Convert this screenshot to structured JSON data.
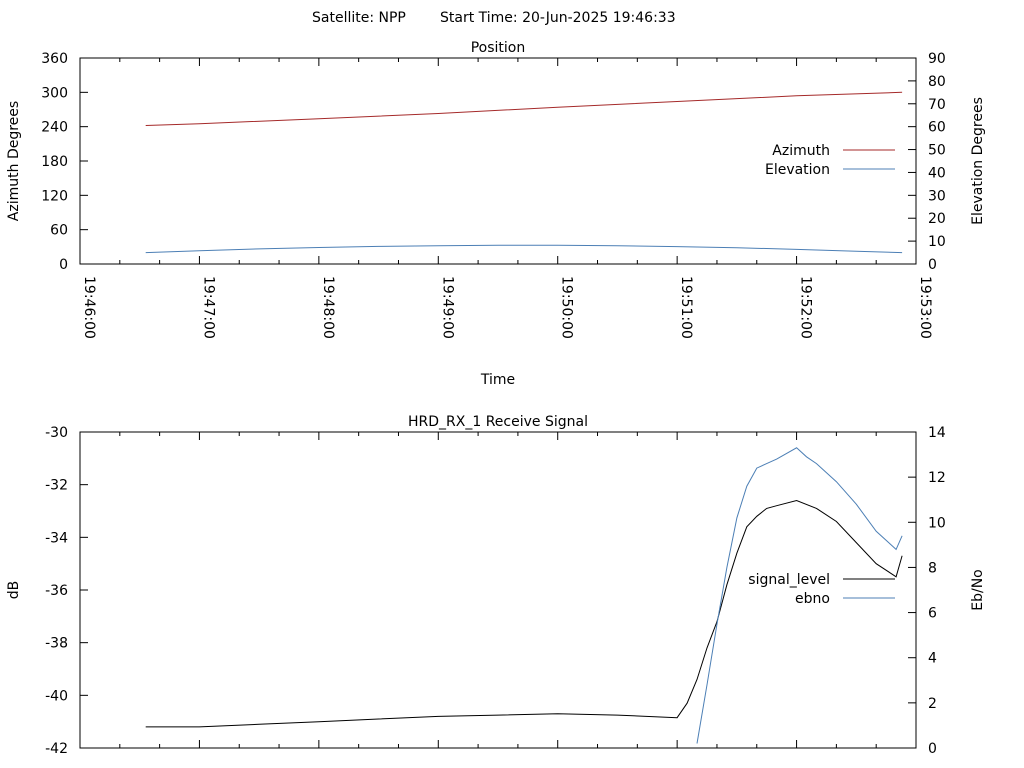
{
  "header": {
    "satellite": "Satellite: NPP",
    "start_time": "Start Time: 20-Jun-2025 19:46:33"
  },
  "colors": {
    "azimuth": "#a52a2a",
    "elevation": "#4c7fb5",
    "signal_level": "#000000",
    "ebno": "#4c7fb5",
    "signal_rise": "#00b000"
  },
  "chart_data": [
    {
      "type": "line",
      "title": "Position",
      "xlabel": "Time",
      "ylabel": "Azimuth Degrees",
      "y2label": "Elevation Degrees",
      "xlim": [
        "19:46:00",
        "19:53:00"
      ],
      "x_ticks": [
        "19:46:00",
        "19:47:00",
        "19:48:00",
        "19:49:00",
        "19:50:00",
        "19:51:00",
        "19:52:00",
        "19:53:00"
      ],
      "ylim": [
        0,
        360
      ],
      "y_ticks": [
        0,
        60,
        120,
        180,
        240,
        300,
        360
      ],
      "y2lim": [
        0,
        90
      ],
      "y2_ticks": [
        0,
        10,
        20,
        30,
        40,
        50,
        60,
        70,
        80,
        90
      ],
      "legend": "right",
      "series": [
        {
          "name": "Azimuth",
          "axis": "y",
          "x": [
            "19:46:33",
            "19:47:00",
            "19:48:00",
            "19:49:00",
            "19:50:00",
            "19:51:00",
            "19:52:00",
            "19:52:53"
          ],
          "values": [
            242,
            245,
            254,
            263,
            274,
            284,
            294,
            300
          ]
        },
        {
          "name": "Elevation",
          "axis": "y2",
          "x": [
            "19:46:33",
            "19:47:00",
            "19:47:30",
            "19:48:00",
            "19:48:30",
            "19:49:00",
            "19:49:30",
            "19:50:00",
            "19:50:30",
            "19:51:00",
            "19:51:30",
            "19:52:00",
            "19:52:30",
            "19:52:53"
          ],
          "values": [
            5.0,
            5.8,
            6.6,
            7.2,
            7.7,
            8.0,
            8.2,
            8.2,
            8.0,
            7.6,
            7.1,
            6.4,
            5.6,
            5.0
          ]
        }
      ]
    },
    {
      "type": "line",
      "title": "HRD_RX_1 Receive Signal",
      "ylabel": "dB",
      "y2label": "Eb/No",
      "xlim": [
        "19:46:00",
        "19:53:00"
      ],
      "ylim": [
        -42,
        -30
      ],
      "y_ticks": [
        -42,
        -40,
        -38,
        -36,
        -34,
        -32,
        -30
      ],
      "y2lim": [
        0,
        14
      ],
      "y2_ticks": [
        0,
        2,
        4,
        6,
        8,
        10,
        12,
        14
      ],
      "legend": "right",
      "series": [
        {
          "name": "signal_level",
          "axis": "y",
          "x": [
            "19:46:33",
            "19:47:00",
            "19:47:30",
            "19:48:00",
            "19:48:30",
            "19:49:00",
            "19:49:30",
            "19:50:00",
            "19:50:30",
            "19:51:00",
            "19:51:05",
            "19:51:10",
            "19:51:15",
            "19:51:20",
            "19:51:25",
            "19:51:30",
            "19:51:35",
            "19:51:40",
            "19:51:45",
            "19:51:50",
            "19:52:00",
            "19:52:10",
            "19:52:20",
            "19:52:30",
            "19:52:40",
            "19:52:50",
            "19:52:53"
          ],
          "values": [
            -41.2,
            -41.2,
            -41.1,
            -41.0,
            -40.9,
            -40.8,
            -40.75,
            -40.7,
            -40.75,
            -40.85,
            -40.3,
            -39.4,
            -38.2,
            -37.2,
            -35.8,
            -34.6,
            -33.6,
            -33.2,
            -32.9,
            -32.8,
            -32.6,
            -32.9,
            -33.4,
            -34.2,
            -35.0,
            -35.5,
            -34.7
          ]
        },
        {
          "name": "ebno",
          "axis": "y2",
          "x": [
            "19:51:10",
            "19:51:15",
            "19:51:20",
            "19:51:25",
            "19:51:30",
            "19:51:35",
            "19:51:40",
            "19:51:45",
            "19:51:50",
            "19:52:00",
            "19:52:05",
            "19:52:10",
            "19:52:20",
            "19:52:30",
            "19:52:40",
            "19:52:50",
            "19:52:53"
          ],
          "values": [
            0.2,
            2.8,
            5.5,
            8.0,
            10.2,
            11.6,
            12.4,
            12.6,
            12.8,
            13.3,
            12.9,
            12.6,
            11.8,
            10.8,
            9.6,
            8.8,
            9.4
          ]
        }
      ]
    }
  ]
}
